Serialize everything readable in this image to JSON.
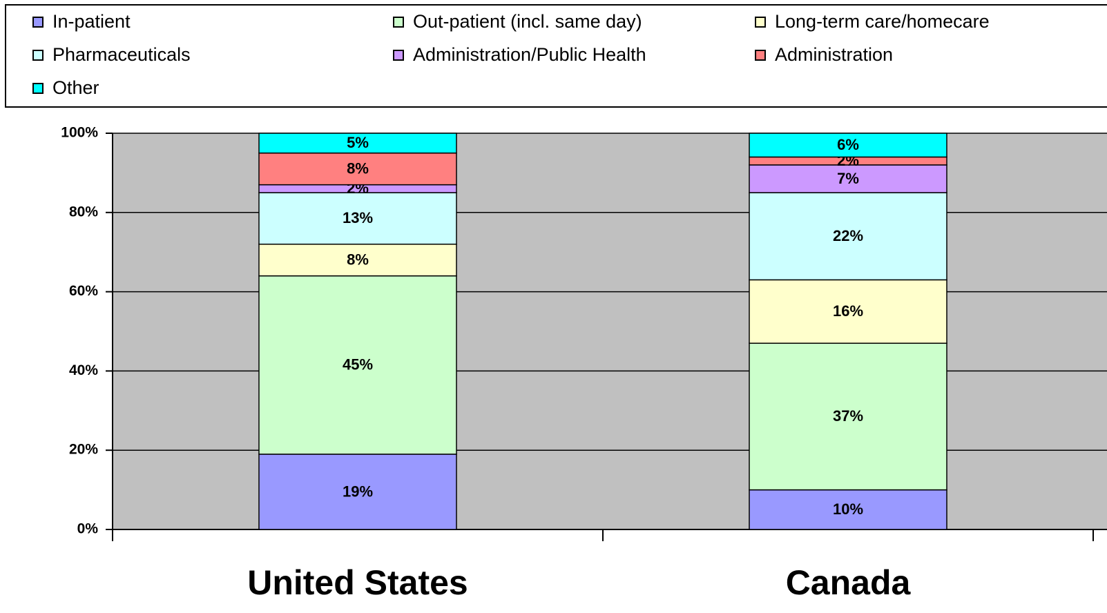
{
  "chart_data": {
    "type": "stacked_bar",
    "categories": [
      "United States",
      "Canada"
    ],
    "series": [
      {
        "name": "In-patient",
        "color": "#9999ff",
        "values": [
          19,
          10
        ],
        "value_labels": [
          "19%",
          "10%"
        ]
      },
      {
        "name": "Out-patient (incl. same day)",
        "color": "#ccffcc",
        "values": [
          45,
          37
        ],
        "value_labels": [
          "45%",
          "37%"
        ]
      },
      {
        "name": "Long-term care/homecare",
        "color": "#ffffcc",
        "values": [
          8,
          16
        ],
        "value_labels": [
          "8%",
          "16%"
        ]
      },
      {
        "name": "Pharmaceuticals",
        "color": "#ccffff",
        "values": [
          13,
          22
        ],
        "value_labels": [
          "13%",
          "22%"
        ]
      },
      {
        "name": "Administration/Public Health",
        "color": "#cc99ff",
        "values": [
          2,
          7
        ],
        "value_labels": [
          "2%",
          "7%"
        ]
      },
      {
        "name": "Administration",
        "color": "#ff8080",
        "values": [
          8,
          2
        ],
        "value_labels": [
          "8%",
          "2%"
        ]
      },
      {
        "name": "Other",
        "color": "#00ffff",
        "values": [
          5,
          6
        ],
        "value_labels": [
          "5%",
          "6%"
        ]
      }
    ],
    "ylim": [
      0,
      100
    ],
    "yticks": [
      {
        "value": 0,
        "label": "0%"
      },
      {
        "value": 20,
        "label": "20%"
      },
      {
        "value": 40,
        "label": "40%"
      },
      {
        "value": 60,
        "label": "60%"
      },
      {
        "value": 80,
        "label": "80%"
      },
      {
        "value": 100,
        "label": "100%"
      }
    ],
    "grid": true,
    "legend": "top"
  }
}
